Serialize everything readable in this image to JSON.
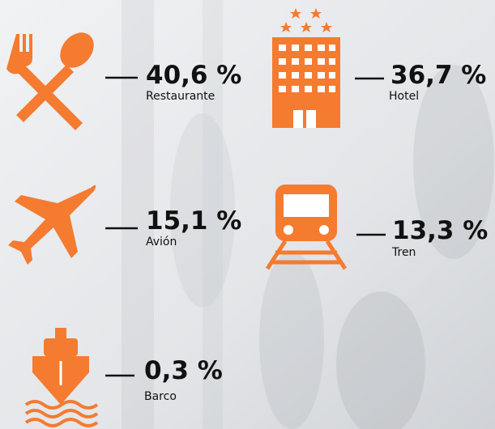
{
  "items": [
    {
      "value": "40,6 %",
      "label": "Restaurante"
    },
    {
      "value": "36,7 %",
      "label": "Hotel"
    },
    {
      "value": "15,1 %",
      "label": "Avión"
    },
    {
      "value": "13,3 %",
      "label": "Tren"
    },
    {
      "value": "0,3 %",
      "label": "Barco"
    }
  ]
}
